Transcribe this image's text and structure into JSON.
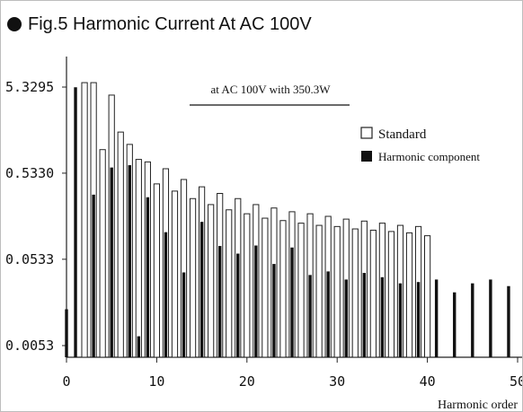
{
  "figure": {
    "title": "Fig.5 Harmonic Current At AC 100V"
  },
  "chart_data": {
    "type": "bar",
    "title": "Fig.5 Harmonic Current At AC 100V",
    "annotation": "at AC 100V with 350.3W",
    "xlabel": "Harmonic order",
    "ylabel": "",
    "yscale": "log",
    "ylim": [
      0.0053,
      6.0
    ],
    "xlim": [
      0,
      50
    ],
    "x_ticks": [
      0,
      10,
      20,
      30,
      40,
      50
    ],
    "y_ticks": [
      {
        "value": 5.3295,
        "label": "5.3295"
      },
      {
        "value": 0.533,
        "label": "0.5330"
      },
      {
        "value": 0.0533,
        "label": "0.0533"
      },
      {
        "value": 0.0053,
        "label": "0.0053"
      }
    ],
    "legend_position": "top-right",
    "grid": false,
    "series": [
      {
        "name": "Standard",
        "style": "outline",
        "x": [
          2,
          3,
          4,
          5,
          6,
          7,
          8,
          9,
          10,
          11,
          12,
          13,
          14,
          15,
          16,
          17,
          18,
          19,
          20,
          21,
          22,
          23,
          24,
          25,
          26,
          27,
          28,
          29,
          30,
          31,
          32,
          33,
          34,
          35,
          36,
          37,
          38,
          39,
          40
        ],
        "y": [
          6.0,
          6.0,
          1.0,
          4.3,
          1.6,
          1.15,
          0.77,
          0.72,
          0.4,
          0.6,
          0.33,
          0.45,
          0.27,
          0.37,
          0.23,
          0.31,
          0.2,
          0.27,
          0.18,
          0.23,
          0.16,
          0.21,
          0.15,
          0.19,
          0.14,
          0.18,
          0.132,
          0.168,
          0.128,
          0.156,
          0.12,
          0.148,
          0.116,
          0.14,
          0.112,
          0.132,
          0.108,
          0.128,
          0.1
        ]
      },
      {
        "name": "Harmonic component",
        "style": "solid",
        "x": [
          0,
          1,
          3,
          5,
          7,
          8,
          9,
          11,
          13,
          15,
          17,
          19,
          21,
          23,
          25,
          27,
          29,
          31,
          33,
          35,
          37,
          39,
          41,
          43,
          45,
          47,
          49
        ],
        "y": [
          0.014,
          5.3,
          0.3,
          0.62,
          0.66,
          0.0068,
          0.28,
          0.11,
          0.0375,
          0.145,
          0.076,
          0.062,
          0.077,
          0.047,
          0.073,
          0.035,
          0.0385,
          0.031,
          0.037,
          0.033,
          0.028,
          0.029,
          0.031,
          0.022,
          0.028,
          0.031,
          0.026
        ]
      }
    ]
  }
}
